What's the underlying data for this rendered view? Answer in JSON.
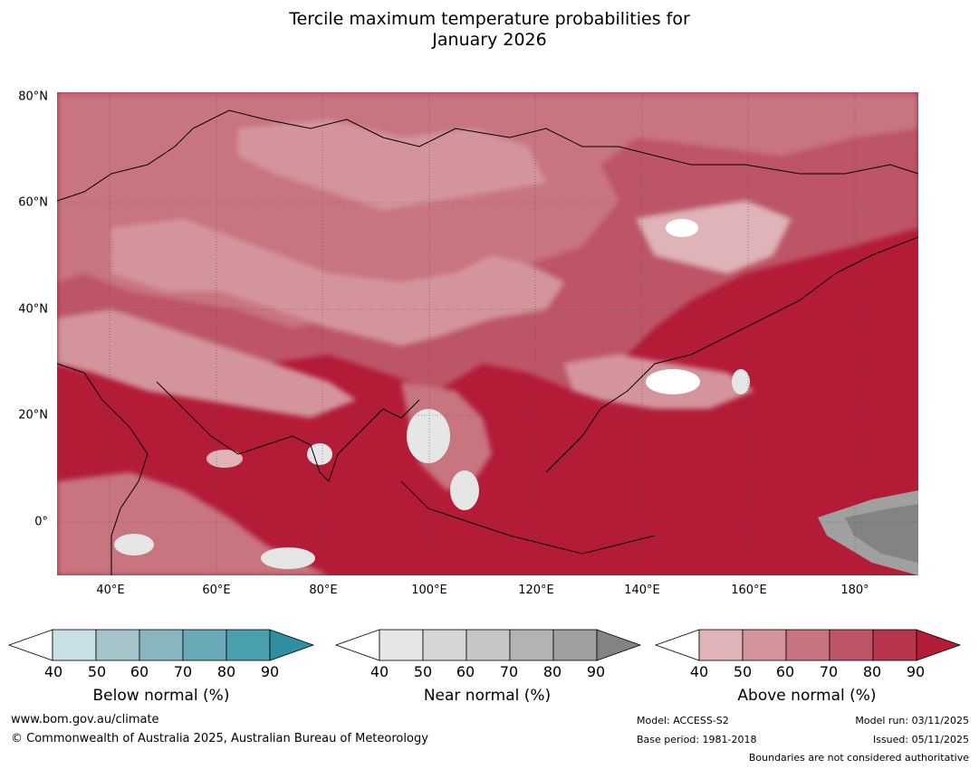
{
  "title": {
    "line1": "Tercile maximum temperature probabilities for",
    "line2": "January 2026"
  },
  "map": {
    "lat_labels": [
      "80°N",
      "60°N",
      "40°N",
      "20°N",
      "0°"
    ],
    "lon_labels": [
      "40°E",
      "60°E",
      "80°E",
      "100°E",
      "120°E",
      "140°E",
      "160°E",
      "180°"
    ],
    "lon_range": [
      30,
      192
    ],
    "lat_range": [
      -10,
      81
    ],
    "grid_lines": true,
    "background_color": "#b31b37"
  },
  "colorbars": [
    {
      "id": "below",
      "title": "Below normal (%)",
      "ticks": [
        "40",
        "50",
        "60",
        "70",
        "80",
        "90"
      ],
      "colors": [
        "#ffffff",
        "#c9e0e6",
        "#a6c5cb",
        "#89b5bf",
        "#6aaab8",
        "#4a9faf",
        "#2f8ea1"
      ]
    },
    {
      "id": "near",
      "title": "Near normal (%)",
      "ticks": [
        "40",
        "50",
        "60",
        "70",
        "80",
        "90"
      ],
      "colors": [
        "#ffffff",
        "#e6e6e6",
        "#d6d6d6",
        "#c6c6c6",
        "#b3b3b3",
        "#a0a0a0",
        "#838383"
      ]
    },
    {
      "id": "above",
      "title": "Above normal (%)",
      "ticks": [
        "40",
        "50",
        "60",
        "70",
        "80",
        "90"
      ],
      "colors": [
        "#ffffff",
        "#e0b3b8",
        "#d4949c",
        "#c87480",
        "#be5566",
        "#b7364c",
        "#b31b37"
      ]
    }
  ],
  "footer": {
    "website": "www.bom.gov.au/climate",
    "copyright": "© Commonwealth of Australia 2025, Australian Bureau of Meteorology",
    "model": "Model: ACCESS-S2",
    "base_period": "Base period: 1981-2018",
    "model_run": "Model run: 03/11/2025",
    "issued": "Issued: 05/11/2025",
    "disclaimer": "Boundaries are not considered authoritative"
  }
}
